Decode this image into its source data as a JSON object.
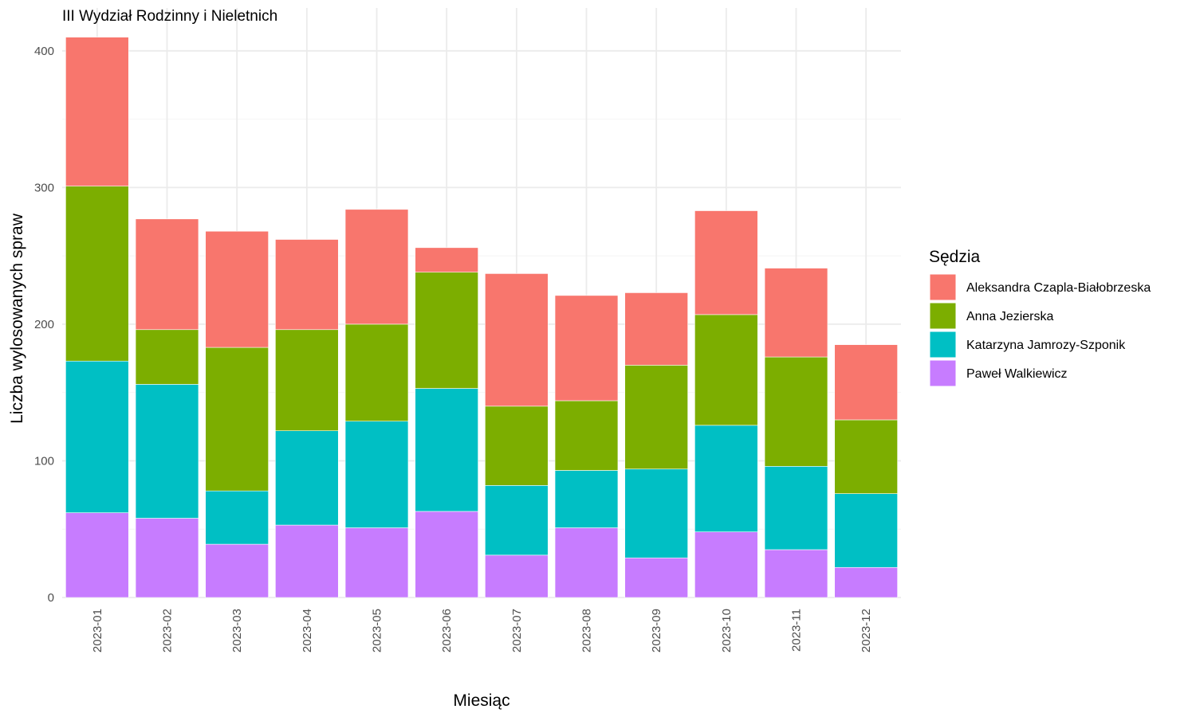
{
  "chart_data": {
    "type": "bar",
    "stacked": true,
    "title": "III Wydział Rodzinny i Nieletnich",
    "xlabel": "Miesiąc",
    "ylabel": "Liczba wylosowanych spraw",
    "ylim": [
      0,
      420
    ],
    "yticks": [
      0,
      100,
      200,
      300,
      400
    ],
    "grid": true,
    "legend": {
      "title": "Sędzia",
      "position": "right"
    },
    "categories": [
      "2023-01",
      "2023-02",
      "2023-03",
      "2023-04",
      "2023-05",
      "2023-06",
      "2023-07",
      "2023-08",
      "2023-09",
      "2023-10",
      "2023-11",
      "2023-12"
    ],
    "series": [
      {
        "name": "Paweł Walkiewicz",
        "color": "#C77CFF",
        "values": [
          62,
          58,
          39,
          53,
          51,
          63,
          31,
          51,
          29,
          48,
          35,
          22
        ]
      },
      {
        "name": "Katarzyna Jamrozy-Szponik",
        "color": "#00BFC4",
        "values": [
          111,
          98,
          39,
          69,
          78,
          90,
          51,
          42,
          65,
          78,
          61,
          54
        ]
      },
      {
        "name": "Anna Jezierska",
        "color": "#7CAE00",
        "values": [
          128,
          40,
          105,
          74,
          71,
          85,
          58,
          51,
          76,
          81,
          80,
          54
        ]
      },
      {
        "name": "Aleksandra Czapla-Białobrzeska",
        "color": "#F8766D",
        "values": [
          109,
          81,
          85,
          66,
          84,
          18,
          97,
          77,
          53,
          76,
          65,
          55
        ]
      }
    ],
    "legend_order": [
      "Aleksandra Czapla-Białobrzeska",
      "Anna Jezierska",
      "Katarzyna Jamrozy-Szponik",
      "Paweł Walkiewicz"
    ]
  }
}
